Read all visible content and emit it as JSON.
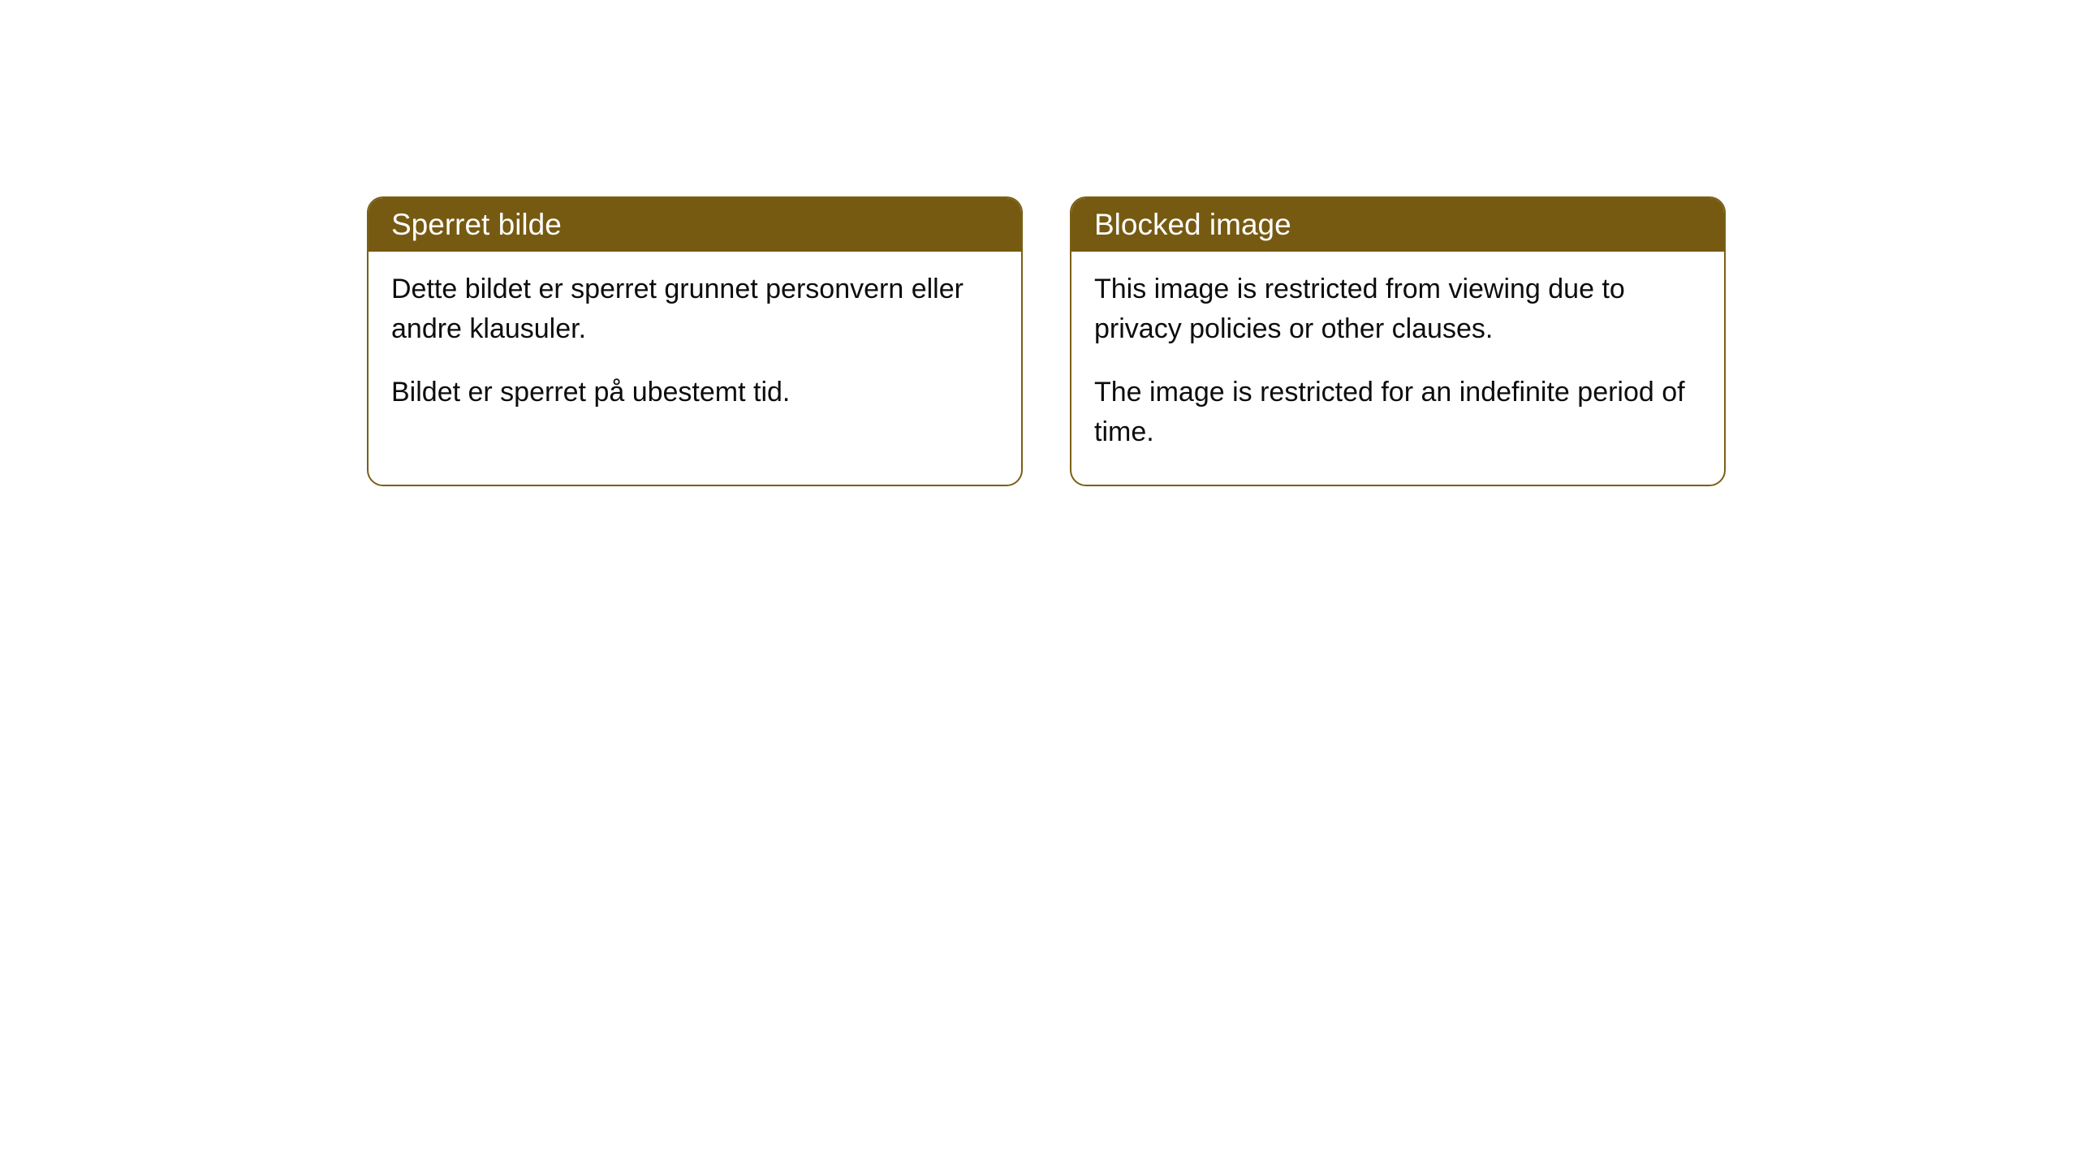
{
  "cards": [
    {
      "title": "Sperret bilde",
      "paragraph1": "Dette bildet er sperret grunnet personvern eller andre klausuler.",
      "paragraph2": "Bildet er sperret på ubestemt tid."
    },
    {
      "title": "Blocked image",
      "paragraph1": "This image is restricted from viewing due to privacy policies or other clauses.",
      "paragraph2": "The image is restricted for an indefinite period of time."
    }
  ],
  "styling": {
    "header_background_color": "#765a12",
    "header_text_color": "#ffffff",
    "border_color": "#7a5f15",
    "body_text_color": "#0d0d0d",
    "body_background_color": "#ffffff",
    "border_radius": 20,
    "header_fontsize": 37,
    "body_fontsize": 34
  }
}
